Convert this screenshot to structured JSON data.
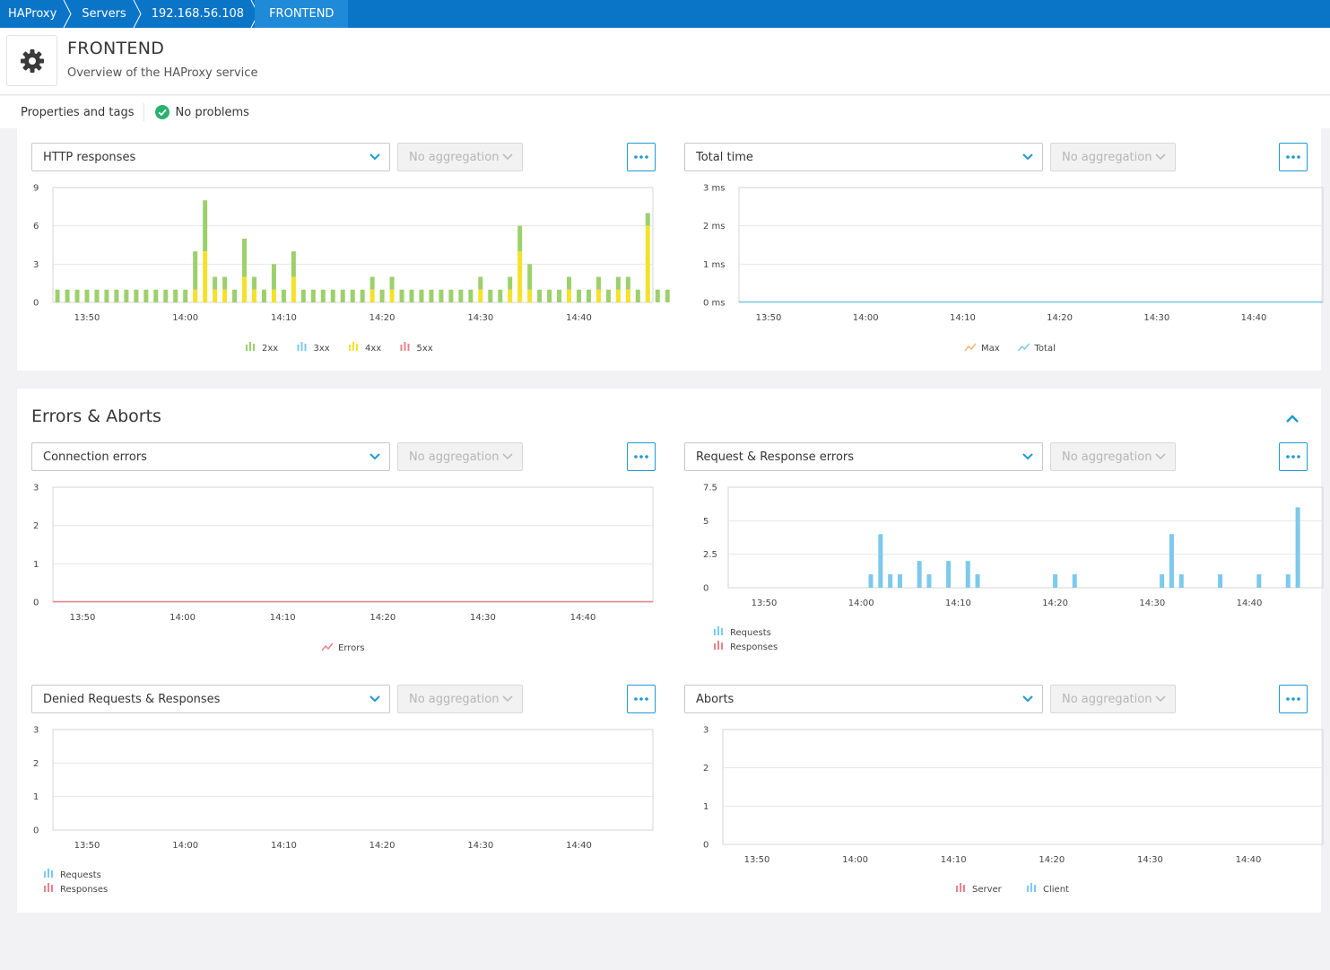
{
  "breadcrumb": [
    "HAProxy",
    "Servers",
    "192.168.56.108",
    "FRONTEND"
  ],
  "header": {
    "title": "FRONTEND",
    "subtitle": "Overview of the HAProxy service",
    "icon": "gear-icon"
  },
  "properties": {
    "link": "Properties and tags",
    "status": "No problems",
    "status_color": "#2ab06f"
  },
  "aggregation_label": "No aggregation",
  "section": {
    "title": "Errors & Aborts"
  },
  "colors": {
    "accent": "#1e9ad6",
    "green": "#9cd06c",
    "yellow": "#f5e12a",
    "blue": "#7cc9ec",
    "red": "#e8838e",
    "orange": "#f5b87a"
  },
  "charts": {
    "http_responses": {
      "selector": "HTTP responses",
      "chart_data": {
        "type": "bar",
        "x_ticks": [
          "13:50",
          "14:00",
          "14:10",
          "14:20",
          "14:30",
          "14:40"
        ],
        "y_ticks": [
          "0",
          "3",
          "6",
          "9"
        ],
        "ylim": [
          0,
          9
        ],
        "xlim_minutes": [
          13.8,
          14.772
        ],
        "series": [
          {
            "name": "2xx",
            "color": "#9cd06c",
            "values": [
              1,
              1,
              1,
              1,
              1,
              1,
              1,
              1,
              1,
              1,
              1,
              1,
              1,
              1,
              3,
              4,
              1,
              1,
              1,
              3,
              1,
              1,
              2,
              1,
              2,
              1,
              1,
              1,
              1,
              1,
              1,
              1,
              1,
              1,
              1,
              1,
              1,
              1,
              1,
              1,
              1,
              1,
              1,
              1,
              1,
              1,
              1,
              2,
              2,
              1,
              1,
              1,
              1,
              1,
              1,
              1,
              1,
              1,
              1,
              1,
              1,
              1,
              1
            ],
            "x": [
              "13:47",
              "13:48",
              "13:49",
              "13:50",
              "13:51",
              "13:52",
              "13:53",
              "13:54",
              "13:55",
              "13:56",
              "13:57",
              "13:58",
              "13:59",
              "14:00",
              "14:01",
              "14:02",
              "14:03",
              "14:04",
              "14:05",
              "14:06",
              "14:07",
              "14:08",
              "14:09",
              "14:10",
              "14:11",
              "14:12",
              "14:13",
              "14:14",
              "14:15",
              "14:16",
              "14:17",
              "14:18",
              "14:19",
              "14:20",
              "14:21",
              "14:22",
              "14:23",
              "14:24",
              "14:25",
              "14:26",
              "14:27",
              "14:28",
              "14:29",
              "14:30",
              "14:31",
              "14:32",
              "14:33",
              "14:34",
              "14:35",
              "14:36",
              "14:37",
              "14:38",
              "14:39",
              "14:40",
              "14:41",
              "14:42",
              "14:43",
              "14:44",
              "14:45",
              "14:46",
              "14:47",
              "14:48",
              "14:49"
            ]
          },
          {
            "name": "3xx",
            "color": "#7cc9ec",
            "values": []
          },
          {
            "name": "4xx",
            "color": "#f5e12a",
            "values": [
              0,
              0,
              0,
              0,
              0,
              0,
              0,
              0,
              0,
              0,
              0,
              0,
              0,
              0,
              1,
              4,
              1,
              1,
              0,
              2,
              1,
              0,
              1,
              0,
              2,
              0,
              0,
              0,
              0,
              0,
              0,
              0,
              1,
              0,
              1,
              0,
              0,
              0,
              0,
              0,
              0,
              0,
              0,
              1,
              0,
              0,
              1,
              4,
              1,
              0,
              0,
              0,
              1,
              0,
              0,
              1,
              0,
              1,
              1,
              0,
              6,
              0,
              0
            ]
          },
          {
            "name": "5xx",
            "color": "#e8838e",
            "values": []
          }
        ]
      }
    },
    "total_time": {
      "selector": "Total time",
      "chart_data": {
        "type": "line",
        "x_ticks": [
          "13:50",
          "14:00",
          "14:10",
          "14:20",
          "14:30",
          "14:40"
        ],
        "y_ticks": [
          "0 ms",
          "1 ms",
          "2 ms",
          "3 ms"
        ],
        "ylim": [
          0,
          3
        ],
        "series": [
          {
            "name": "Max",
            "color": "#f5b87a",
            "values": [
              0,
              0
            ]
          },
          {
            "name": "Total",
            "color": "#7cc9ec",
            "values": [
              0,
              0
            ]
          }
        ]
      }
    },
    "connection_errors": {
      "selector": "Connection errors",
      "chart_data": {
        "type": "line",
        "x_ticks": [
          "13:50",
          "14:00",
          "14:10",
          "14:20",
          "14:30",
          "14:40"
        ],
        "y_ticks": [
          "0",
          "1",
          "2",
          "3"
        ],
        "ylim": [
          0,
          3
        ],
        "series": [
          {
            "name": "Errors",
            "color": "#e8838e",
            "values": [
              0,
              0
            ]
          }
        ]
      }
    },
    "req_resp_errors": {
      "selector": "Request & Response errors",
      "chart_data": {
        "type": "bar",
        "x_ticks": [
          "13:50",
          "14:00",
          "14:10",
          "14:20",
          "14:30",
          "14:40"
        ],
        "y_ticks": [
          "0",
          "2.5",
          "5",
          "7.5"
        ],
        "ylim": [
          0,
          7.5
        ],
        "series": [
          {
            "name": "Requests",
            "color": "#7cc9ec",
            "x": [
              "14:01",
              "14:02",
              "14:03",
              "14:04",
              "14:06",
              "14:07",
              "14:09",
              "14:11",
              "14:12",
              "14:20",
              "14:22",
              "14:31",
              "14:32",
              "14:33",
              "14:37",
              "14:41",
              "14:44",
              "14:45"
            ],
            "values": [
              1,
              4,
              1,
              1,
              2,
              1,
              2,
              2,
              1,
              1,
              1,
              1,
              4,
              1,
              1,
              1,
              1,
              6
            ]
          },
          {
            "name": "Responses",
            "color": "#e8838e",
            "values": []
          }
        ]
      }
    },
    "denied": {
      "selector": "Denied Requests & Responses",
      "chart_data": {
        "type": "bar",
        "x_ticks": [
          "13:50",
          "14:00",
          "14:10",
          "14:20",
          "14:30",
          "14:40"
        ],
        "y_ticks": [
          "0",
          "1",
          "2",
          "3"
        ],
        "ylim": [
          0,
          3
        ],
        "series": [
          {
            "name": "Requests",
            "color": "#7cc9ec",
            "values": []
          },
          {
            "name": "Responses",
            "color": "#e8838e",
            "values": []
          }
        ]
      }
    },
    "aborts": {
      "selector": "Aborts",
      "chart_data": {
        "type": "bar",
        "x_ticks": [
          "13:50",
          "14:00",
          "14:10",
          "14:20",
          "14:30",
          "14:40"
        ],
        "y_ticks": [
          "0",
          "1",
          "2",
          "3"
        ],
        "ylim": [
          0,
          3
        ],
        "series": [
          {
            "name": "Server",
            "color": "#e8838e",
            "values": []
          },
          {
            "name": "Client",
            "color": "#7cc9ec",
            "values": []
          }
        ]
      }
    }
  }
}
